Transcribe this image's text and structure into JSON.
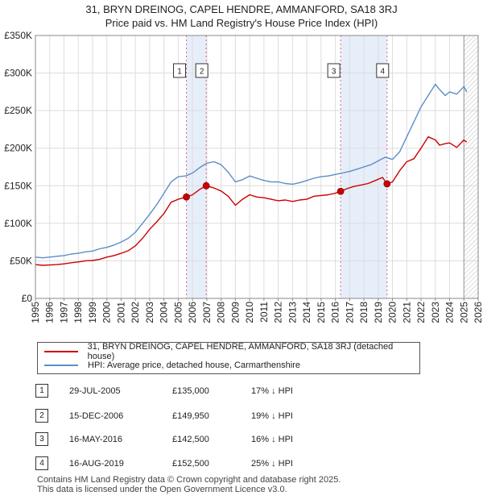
{
  "title_line1": "31, BRYN DREINOG, CAPEL HENDRE, AMMANFORD, SA18 3RJ",
  "title_line2": "Price paid vs. HM Land Registry's House Price Index (HPI)",
  "legend": {
    "series1": "31, BRYN DREINOG, CAPEL HENDRE, AMMANFORD, SA18 3RJ (detached house)",
    "series2": "HPI: Average price, detached house, Carmarthenshire"
  },
  "colors": {
    "price": "#cc0000",
    "hpi": "#5b8ec6",
    "band": "#e6eef9",
    "vline": "#e06080"
  },
  "sales": [
    {
      "num": "1",
      "date": "29-JUL-2005",
      "price": "£135,000",
      "hpi": "17% ↓ HPI"
    },
    {
      "num": "2",
      "date": "15-DEC-2006",
      "price": "£149,950",
      "hpi": "19% ↓ HPI"
    },
    {
      "num": "3",
      "date": "16-MAY-2016",
      "price": "£142,500",
      "hpi": "16% ↓ HPI"
    },
    {
      "num": "4",
      "date": "16-AUG-2019",
      "price": "£152,500",
      "hpi": "25% ↓ HPI"
    }
  ],
  "footer_line1": "Contains HM Land Registry data © Crown copyright and database right 2025.",
  "footer_line2": "This data is licensed under the Open Government Licence v3.0.",
  "chart_data": {
    "type": "line",
    "xlim": [
      1995,
      2026
    ],
    "ylim": [
      0,
      350000
    ],
    "x_ticks": [
      "1995",
      "1996",
      "1997",
      "1998",
      "1999",
      "2000",
      "2001",
      "2002",
      "2003",
      "2004",
      "2005",
      "2006",
      "2007",
      "2008",
      "2009",
      "2010",
      "2011",
      "2012",
      "2013",
      "2014",
      "2015",
      "2016",
      "2017",
      "2018",
      "2019",
      "2020",
      "2021",
      "2022",
      "2023",
      "2024",
      "2025",
      "2026"
    ],
    "y_ticks": [
      {
        "value": 0,
        "label": "£0"
      },
      {
        "value": 50000,
        "label": "£50K"
      },
      {
        "value": 100000,
        "label": "£100K"
      },
      {
        "value": 150000,
        "label": "£150K"
      },
      {
        "value": 200000,
        "label": "£200K"
      },
      {
        "value": 250000,
        "label": "£250K"
      },
      {
        "value": 300000,
        "label": "£300K"
      },
      {
        "value": 350000,
        "label": "£350K"
      }
    ],
    "grid": true,
    "hatched_after": 2025.0,
    "bands": [
      [
        2005.57,
        2006.96
      ],
      [
        2016.37,
        2019.62
      ]
    ],
    "markers": [
      {
        "label": "1",
        "x": 2005.57,
        "y": 135000
      },
      {
        "label": "2",
        "x": 2006.96,
        "y": 149950
      },
      {
        "label": "3",
        "x": 2016.37,
        "y": 142500
      },
      {
        "label": "4",
        "x": 2019.62,
        "y": 152500
      }
    ],
    "series": [
      {
        "name": "31, BRYN DREINOG, CAPEL HENDRE, AMMANFORD, SA18 3RJ (detached house)",
        "x": [
          1995,
          1995.5,
          1996,
          1996.5,
          1997,
          1997.5,
          1998,
          1998.5,
          1999,
          1999.5,
          2000,
          2000.5,
          2001,
          2001.5,
          2002,
          2002.5,
          2003,
          2003.5,
          2004,
          2004.5,
          2005,
          2005.57,
          2006,
          2006.5,
          2006.96,
          2007.5,
          2008,
          2008.5,
          2009,
          2009.5,
          2010,
          2010.5,
          2011,
          2011.5,
          2012,
          2012.5,
          2013,
          2013.5,
          2014,
          2014.5,
          2015,
          2015.5,
          2016,
          2016.37,
          2016.8,
          2017.3,
          2017.8,
          2018.3,
          2018.8,
          2019.3,
          2019.62,
          2020,
          2020.5,
          2021,
          2021.5,
          2022,
          2022.5,
          2023,
          2023.3,
          2023.7,
          2024,
          2024.5,
          2025,
          2025.2
        ],
        "y": [
          45000,
          44000,
          44500,
          45000,
          46000,
          47500,
          48500,
          50000,
          50500,
          52000,
          55000,
          57000,
          60000,
          63500,
          70000,
          80000,
          92000,
          102000,
          113000,
          128000,
          132000,
          135000,
          138000,
          145000,
          149950,
          147000,
          143000,
          136000,
          124000,
          132000,
          138000,
          135000,
          134000,
          132000,
          130000,
          131000,
          129000,
          131000,
          132000,
          136000,
          137000,
          138000,
          140000,
          142500,
          146000,
          149000,
          151000,
          153000,
          157000,
          161000,
          152500,
          155000,
          170000,
          182000,
          186000,
          200000,
          215000,
          211000,
          204000,
          206000,
          207000,
          201000,
          211000,
          208000
        ]
      },
      {
        "name": "HPI: Average price, detached house, Carmarthenshire",
        "x": [
          1995,
          1995.5,
          1996,
          1996.5,
          1997,
          1997.5,
          1998,
          1998.5,
          1999,
          1999.5,
          2000,
          2000.5,
          2001,
          2001.5,
          2002,
          2002.5,
          2003,
          2003.5,
          2004,
          2004.5,
          2005,
          2005.5,
          2006,
          2006.5,
          2007,
          2007.5,
          2008,
          2008.5,
          2009,
          2009.5,
          2010,
          2010.5,
          2011,
          2011.5,
          2012,
          2012.5,
          2013,
          2013.5,
          2014,
          2014.5,
          2015,
          2015.5,
          2016,
          2016.5,
          2017,
          2017.5,
          2018,
          2018.5,
          2019,
          2019.5,
          2020,
          2020.5,
          2021,
          2021.5,
          2022,
          2022.5,
          2023,
          2023.3,
          2023.7,
          2024,
          2024.5,
          2025,
          2025.2
        ],
        "y": [
          55000,
          54000,
          55000,
          56000,
          57000,
          59000,
          60000,
          62000,
          63000,
          66000,
          68000,
          71000,
          75000,
          80000,
          88000,
          100000,
          112000,
          125000,
          140000,
          155000,
          162000,
          163000,
          167000,
          174000,
          180000,
          182000,
          178000,
          168000,
          155000,
          158000,
          163000,
          160000,
          157000,
          155000,
          155000,
          153000,
          152000,
          154000,
          157000,
          160000,
          162000,
          163000,
          165000,
          167000,
          169000,
          172000,
          175000,
          178000,
          183000,
          188000,
          185000,
          195000,
          215000,
          235000,
          255000,
          270000,
          285000,
          278000,
          270000,
          275000,
          272000,
          282000,
          275000
        ]
      }
    ]
  }
}
